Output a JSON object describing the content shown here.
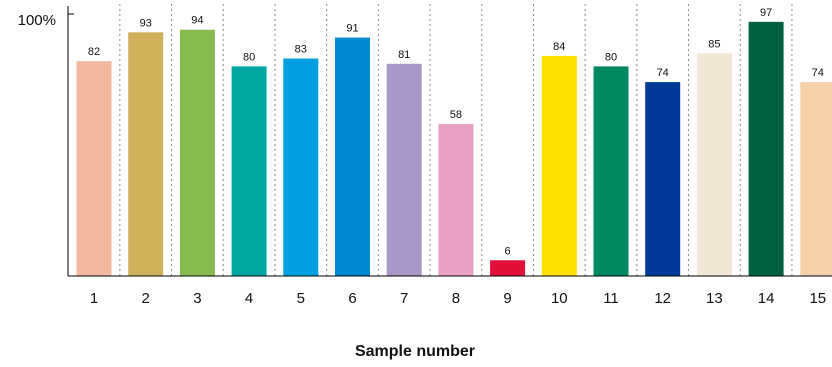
{
  "chart_data": {
    "type": "bar",
    "categories": [
      "1",
      "2",
      "3",
      "4",
      "5",
      "6",
      "7",
      "8",
      "9",
      "10",
      "11",
      "12",
      "13",
      "14",
      "15"
    ],
    "values": [
      82,
      93,
      94,
      80,
      83,
      91,
      81,
      58,
      6,
      84,
      80,
      74,
      85,
      97,
      74
    ],
    "data_labels": [
      "82",
      "93",
      "94",
      "80",
      "83",
      "91",
      "81",
      "58",
      "6",
      "84",
      "80",
      "74",
      "85",
      "97",
      "74"
    ],
    "colors": [
      "#f2b8a0",
      "#cfb05a",
      "#86bb4f",
      "#00a8a0",
      "#00a0e0",
      "#0088d0",
      "#a898c8",
      "#e8a0c4",
      "#e0103a",
      "#ffe000",
      "#008860",
      "#003a98",
      "#f2e6d6",
      "#006040",
      "#f6d0a8"
    ],
    "xlabel": "Sample number",
    "ylabel": "",
    "ylim": [
      0,
      100
    ],
    "y_tick_labels": [
      "100%"
    ],
    "grid": "vertical dotted separators between bars",
    "legend": "none"
  }
}
